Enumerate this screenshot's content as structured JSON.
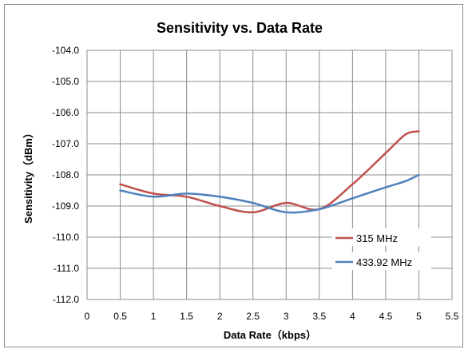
{
  "chart_data": {
    "type": "line",
    "title": "Sensitivity vs. Data Rate",
    "xlabel": "Data Rate（kbps）",
    "ylabel": "Sensitivity（dBm）",
    "xlim": [
      0,
      5.5
    ],
    "ylim": [
      -112.0,
      -104.0
    ],
    "x_ticks": [
      "0",
      "0.5",
      "1",
      "1.5",
      "2",
      "2.5",
      "3",
      "3.5",
      "4",
      "4.5",
      "5",
      "5.5"
    ],
    "y_ticks": [
      "-104.0",
      "-105.0",
      "-106.0",
      "-107.0",
      "-108.0",
      "-109.0",
      "-110.0",
      "-111.0",
      "-112.0"
    ],
    "grid": true,
    "legend_position": "right",
    "series": [
      {
        "name": "315 MHz",
        "color": "#c0504d",
        "x": [
          0.5,
          1.0,
          1.5,
          2.0,
          2.5,
          3.0,
          3.5,
          4.0,
          4.5,
          4.8,
          5.0
        ],
        "y": [
          -108.3,
          -108.6,
          -108.7,
          -109.0,
          -109.2,
          -108.9,
          -109.1,
          -108.3,
          -107.3,
          -106.7,
          -106.6
        ]
      },
      {
        "name": "433.92 MHz",
        "color": "#4f81bd",
        "x": [
          0.5,
          1.0,
          1.5,
          2.0,
          2.5,
          3.0,
          3.5,
          4.0,
          4.5,
          4.8,
          5.0
        ],
        "y": [
          -108.5,
          -108.7,
          -108.6,
          -108.7,
          -108.9,
          -109.2,
          -109.1,
          -108.75,
          -108.4,
          -108.2,
          -108.0
        ]
      }
    ]
  }
}
